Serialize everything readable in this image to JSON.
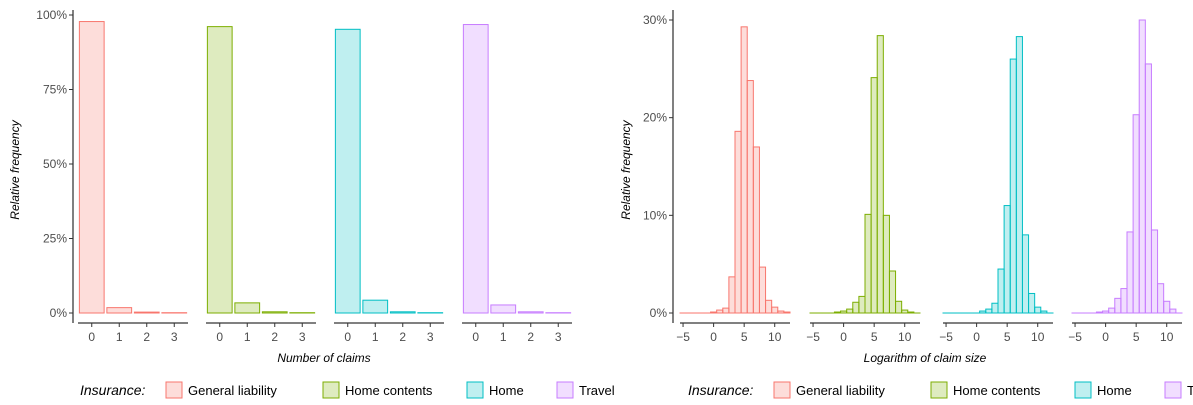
{
  "legend": {
    "title": "Insurance:",
    "items": [
      {
        "label": "General liability",
        "color": "#F8766D"
      },
      {
        "label": "Home contents",
        "color": "#7CAE00"
      },
      {
        "label": "Home",
        "color": "#00BFC4"
      },
      {
        "label": "Travel",
        "color": "#C77CFF"
      }
    ]
  },
  "chart_data": [
    {
      "type": "bar",
      "facets": [
        "General liability",
        "Home contents",
        "Home",
        "Travel"
      ],
      "xlabel": "Number of claims",
      "ylabel": "Relative frequency",
      "categories": [
        "0",
        "1",
        "2",
        "3"
      ],
      "ylim": [
        0,
        1.0
      ],
      "yticks": [
        0,
        0.25,
        0.5,
        0.75,
        1.0
      ],
      "ytick_labels": [
        "0%",
        "25%",
        "50%",
        "75%",
        "100%"
      ],
      "legend_position": "bottom",
      "grid": false,
      "series": [
        {
          "name": "General liability",
          "values": [
            0.978,
            0.018,
            0.003,
            0.001
          ]
        },
        {
          "name": "Home contents",
          "values": [
            0.961,
            0.034,
            0.004,
            0.001
          ]
        },
        {
          "name": "Home",
          "values": [
            0.952,
            0.043,
            0.004,
            0.001
          ]
        },
        {
          "name": "Travel",
          "values": [
            0.968,
            0.027,
            0.004,
            0.001
          ]
        }
      ]
    },
    {
      "type": "bar",
      "subtype": "histogram",
      "facets": [
        "General liability",
        "Home contents",
        "Home",
        "Travel"
      ],
      "xlabel": "Logarithm of claim size",
      "ylabel": "Relative frequency",
      "bin_width": 1,
      "x": [
        -5,
        -4,
        -3,
        -2,
        -1,
        0,
        1,
        2,
        3,
        4,
        5,
        6,
        7,
        8,
        9,
        10,
        11,
        12
      ],
      "xlim": [
        -5.5,
        12.5
      ],
      "xticks": [
        -5,
        0,
        5,
        10
      ],
      "ylim": [
        0,
        0.3
      ],
      "yticks": [
        0,
        0.1,
        0.2,
        0.3
      ],
      "ytick_labels": [
        "0%",
        "10%",
        "20%",
        "30%"
      ],
      "legend_position": "bottom",
      "grid": false,
      "series": [
        {
          "name": "General liability",
          "values": [
            0,
            0,
            0,
            0,
            0,
            0.001,
            0.003,
            0.005,
            0.037,
            0.186,
            0.293,
            0.238,
            0.17,
            0.047,
            0.013,
            0.006,
            0.002,
            0.001
          ]
        },
        {
          "name": "Home contents",
          "values": [
            0,
            0,
            0,
            0,
            0.001,
            0.002,
            0.004,
            0.011,
            0.017,
            0.101,
            0.241,
            0.284,
            0.1,
            0.043,
            0.012,
            0.003,
            0.001,
            0
          ]
        },
        {
          "name": "Home",
          "values": [
            0,
            0,
            0,
            0,
            0,
            0,
            0.002,
            0.004,
            0.01,
            0.045,
            0.11,
            0.26,
            0.283,
            0.08,
            0.02,
            0.006,
            0.002,
            0
          ]
        },
        {
          "name": "Travel",
          "values": [
            0,
            0,
            0,
            0,
            0.001,
            0.002,
            0.005,
            0.015,
            0.025,
            0.083,
            0.203,
            0.3,
            0.255,
            0.085,
            0.03,
            0.012,
            0.004,
            0
          ]
        }
      ]
    }
  ]
}
